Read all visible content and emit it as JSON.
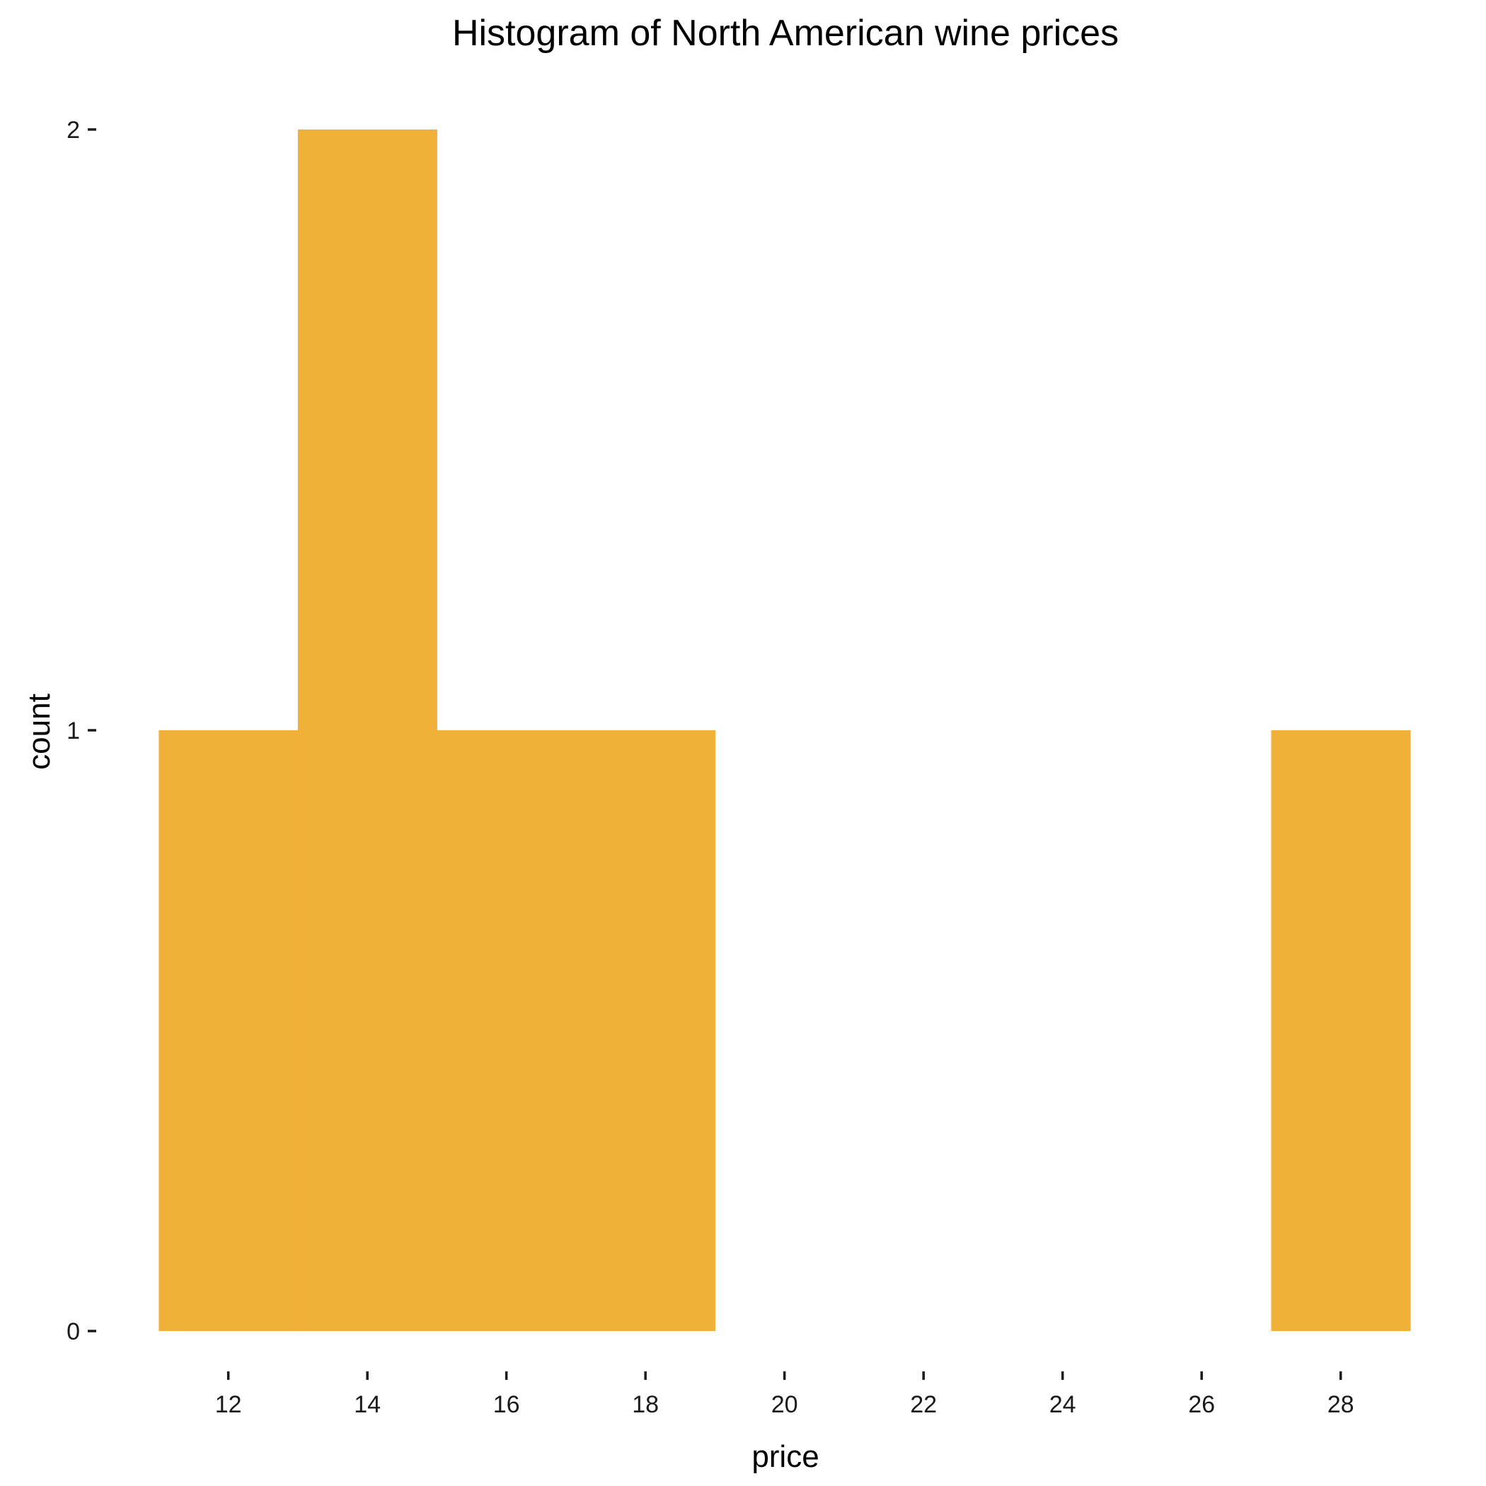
{
  "colors": {
    "bar_fill": "#F0B138",
    "background": "#FFFFFF",
    "text": "#000000"
  },
  "chart_data": {
    "type": "bar",
    "subtype": "histogram",
    "title": "Histogram of North American wine prices",
    "xlabel": "price",
    "ylabel": "count",
    "bins": [
      {
        "x_start": 11,
        "x_end": 13,
        "count": 1
      },
      {
        "x_start": 13,
        "x_end": 15,
        "count": 2
      },
      {
        "x_start": 15,
        "x_end": 17,
        "count": 1
      },
      {
        "x_start": 17,
        "x_end": 19,
        "count": 1
      },
      {
        "x_start": 19,
        "x_end": 21,
        "count": 0
      },
      {
        "x_start": 21,
        "x_end": 23,
        "count": 0
      },
      {
        "x_start": 23,
        "x_end": 25,
        "count": 0
      },
      {
        "x_start": 25,
        "x_end": 27,
        "count": 0
      },
      {
        "x_start": 27,
        "x_end": 29,
        "count": 1
      }
    ],
    "xticks": [
      "12",
      "14",
      "16",
      "18",
      "20",
      "22",
      "24",
      "26",
      "28"
    ],
    "yticks": [
      "0",
      "1",
      "2"
    ],
    "xlim": [
      10,
      30
    ],
    "ylim": [
      0,
      2
    ],
    "grid": false,
    "legend": "none"
  }
}
